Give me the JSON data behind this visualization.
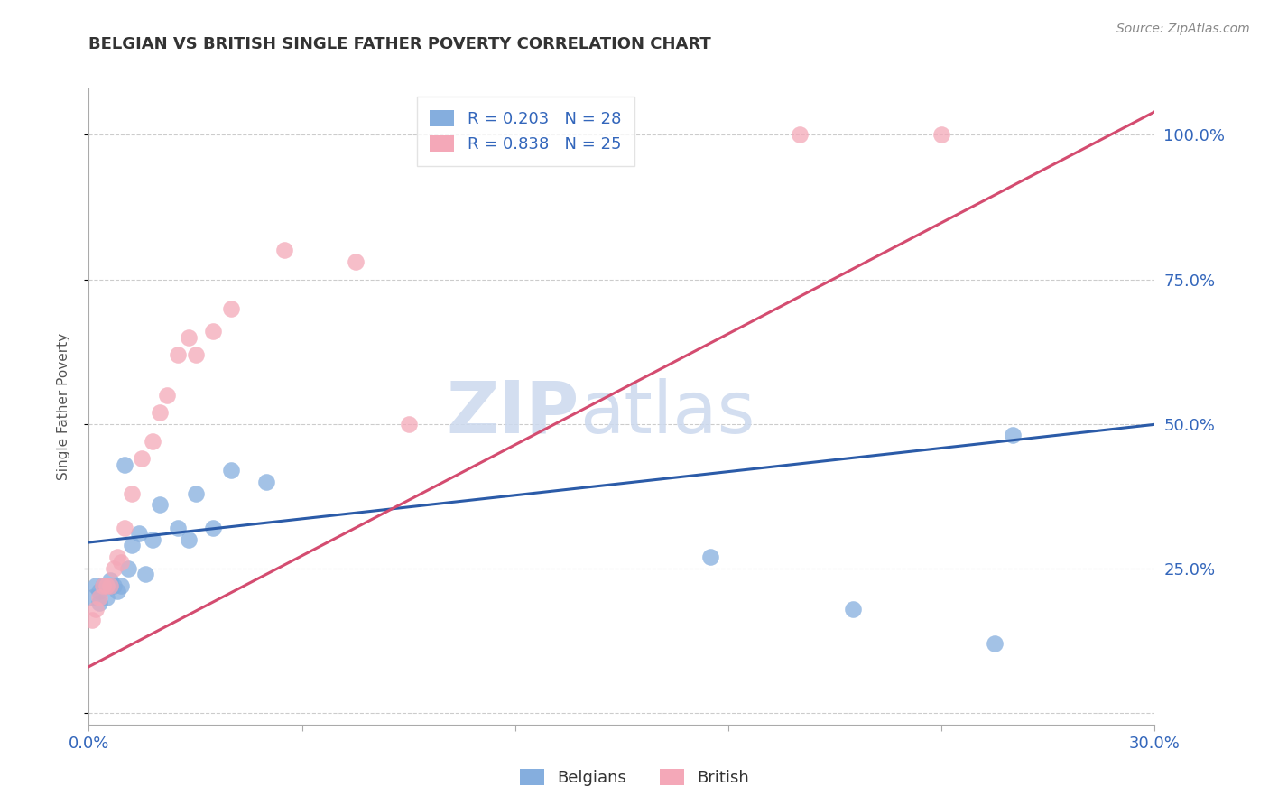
{
  "title": "BELGIAN VS BRITISH SINGLE FATHER POVERTY CORRELATION CHART",
  "source": "Source: ZipAtlas.com",
  "ylabel": "Single Father Poverty",
  "xlim": [
    0.0,
    0.3
  ],
  "ylim": [
    -0.02,
    1.08
  ],
  "ytick_vals": [
    0.0,
    0.25,
    0.5,
    0.75,
    1.0
  ],
  "ytick_labels": [
    "",
    "25.0%",
    "50.0%",
    "75.0%",
    "100.0%"
  ],
  "xtick_vals": [
    0.0,
    0.06,
    0.12,
    0.18,
    0.24,
    0.3
  ],
  "xtick_labels": [
    "0.0%",
    "",
    "",
    "",
    "",
    "30.0%"
  ],
  "blue_R": 0.203,
  "blue_N": 28,
  "pink_R": 0.838,
  "pink_N": 25,
  "blue_color": "#85AEDE",
  "pink_color": "#F4A8B8",
  "line_blue": "#2B5BA8",
  "line_pink": "#D44C70",
  "watermark_zip": "ZIP",
  "watermark_atlas": "atlas",
  "belgians_x": [
    0.001,
    0.002,
    0.003,
    0.003,
    0.004,
    0.005,
    0.006,
    0.006,
    0.007,
    0.008,
    0.009,
    0.01,
    0.011,
    0.012,
    0.014,
    0.016,
    0.018,
    0.02,
    0.025,
    0.028,
    0.03,
    0.035,
    0.04,
    0.05,
    0.175,
    0.215,
    0.255,
    0.26
  ],
  "belgians_y": [
    0.2,
    0.22,
    0.19,
    0.21,
    0.22,
    0.2,
    0.23,
    0.22,
    0.22,
    0.21,
    0.22,
    0.43,
    0.25,
    0.29,
    0.31,
    0.24,
    0.3,
    0.36,
    0.32,
    0.3,
    0.38,
    0.32,
    0.42,
    0.4,
    0.27,
    0.18,
    0.12,
    0.48
  ],
  "british_x": [
    0.001,
    0.002,
    0.003,
    0.004,
    0.005,
    0.006,
    0.007,
    0.008,
    0.009,
    0.01,
    0.012,
    0.015,
    0.018,
    0.02,
    0.022,
    0.025,
    0.028,
    0.03,
    0.035,
    0.04,
    0.055,
    0.075,
    0.09,
    0.2,
    0.24
  ],
  "british_y": [
    0.16,
    0.18,
    0.2,
    0.22,
    0.22,
    0.22,
    0.25,
    0.27,
    0.26,
    0.32,
    0.38,
    0.44,
    0.47,
    0.52,
    0.55,
    0.62,
    0.65,
    0.62,
    0.66,
    0.7,
    0.8,
    0.78,
    0.5,
    1.0,
    1.0
  ]
}
